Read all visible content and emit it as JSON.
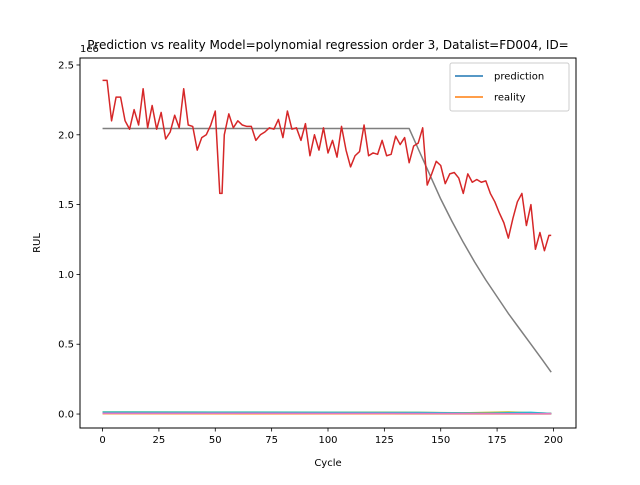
{
  "chart_data": {
    "type": "line",
    "title": "Prediction vs reality Model=polynomial regression order 3, Datalist=FD004, ID=",
    "xlabel": "Cycle",
    "ylabel": "RUL",
    "offset_text": "1e6",
    "xlim": [
      -10,
      210
    ],
    "ylim": [
      -100000,
      2550000
    ],
    "xticks": [
      0,
      25,
      50,
      75,
      100,
      125,
      150,
      175,
      200
    ],
    "yticks": [
      0.0,
      500000,
      1000000,
      1500000,
      2000000,
      2500000
    ],
    "ytick_labels": [
      "0.0",
      "0.5",
      "1.0",
      "1.5",
      "2.0",
      "2.5"
    ],
    "grid": false,
    "legend_position": "top-right",
    "legend": [
      {
        "label": "prediction",
        "color": "#1f77b4"
      },
      {
        "label": "reality",
        "color": "#ff7f0e"
      }
    ],
    "series": [
      {
        "name": "prediction",
        "color": "#1f77b4",
        "x": [
          0,
          50,
          100,
          150,
          199
        ],
        "y": [
          5000,
          5000,
          4000,
          3000,
          2000
        ]
      },
      {
        "name": "reality",
        "color": "#ff7f0e",
        "x": [
          0,
          199
        ],
        "y": [
          3000,
          1000
        ]
      },
      {
        "color": "#2ca02c",
        "x": [
          0,
          50,
          100,
          150,
          199
        ],
        "y": [
          8000,
          7000,
          6000,
          5000,
          4000
        ]
      },
      {
        "color": "#9467bd",
        "x": [
          0,
          50,
          100,
          150,
          199
        ],
        "y": [
          12000,
          11000,
          10000,
          8000,
          6000
        ]
      },
      {
        "color": "#8c564b",
        "x": [
          0,
          50,
          100,
          150,
          199
        ],
        "y": [
          10000,
          9000,
          8000,
          6000,
          3000
        ]
      },
      {
        "color": "#bcbd22",
        "x": [
          0,
          50,
          100,
          140,
          160,
          180,
          199
        ],
        "y": [
          15000,
          14000,
          13000,
          12000,
          8000,
          15000,
          5000
        ]
      },
      {
        "color": "#17becf",
        "x": [
          0,
          50,
          100,
          140,
          170,
          190,
          199
        ],
        "y": [
          14000,
          13000,
          12000,
          11000,
          6000,
          12000,
          4000
        ]
      },
      {
        "color": "#e377c2",
        "x": [
          0,
          50,
          100,
          150,
          199
        ],
        "y": [
          6000,
          6000,
          5000,
          4000,
          3000
        ]
      },
      {
        "color": "#7f7f7f",
        "x": [
          0,
          136,
          140,
          145,
          150,
          155,
          160,
          165,
          170,
          175,
          180,
          185,
          190,
          195,
          199
        ],
        "y": [
          2045000,
          2045000,
          1900000,
          1720000,
          1540000,
          1380000,
          1230000,
          1090000,
          960000,
          840000,
          720000,
          610000,
          500000,
          390000,
          300000
        ]
      },
      {
        "color": "#d62728",
        "x": [
          0,
          2,
          4,
          6,
          8,
          10,
          12,
          14,
          16,
          18,
          20,
          22,
          24,
          26,
          28,
          30,
          32,
          34,
          36,
          38,
          40,
          42,
          44,
          46,
          48,
          50,
          52,
          53,
          54,
          56,
          58,
          60,
          62,
          64,
          66,
          68,
          70,
          72,
          74,
          76,
          78,
          80,
          82,
          84,
          86,
          88,
          90,
          92,
          94,
          96,
          98,
          100,
          102,
          104,
          106,
          108,
          110,
          112,
          114,
          116,
          118,
          120,
          122,
          124,
          126,
          128,
          130,
          132,
          134,
          136,
          138,
          140,
          142,
          144,
          146,
          148,
          150,
          152,
          154,
          156,
          158,
          160,
          162,
          164,
          166,
          168,
          170,
          172,
          174,
          176,
          178,
          180,
          182,
          184,
          186,
          188,
          190,
          192,
          194,
          196,
          198,
          199
        ],
        "y": [
          2390000,
          2390000,
          2100000,
          2270000,
          2270000,
          2100000,
          2040000,
          2180000,
          2070000,
          2330000,
          2050000,
          2210000,
          2040000,
          2160000,
          1970000,
          2020000,
          2140000,
          2050000,
          2330000,
          2070000,
          2060000,
          1890000,
          1980000,
          2000000,
          2070000,
          2170000,
          1580000,
          1580000,
          2000000,
          2150000,
          2050000,
          2100000,
          2070000,
          2060000,
          2060000,
          1960000,
          2000000,
          2020000,
          2050000,
          2040000,
          2110000,
          1980000,
          2170000,
          2040000,
          2050000,
          1960000,
          2080000,
          1850000,
          2000000,
          1890000,
          2050000,
          1870000,
          1960000,
          1840000,
          2060000,
          1890000,
          1770000,
          1850000,
          1880000,
          2070000,
          1850000,
          1870000,
          1860000,
          1960000,
          1850000,
          1860000,
          1990000,
          1930000,
          1980000,
          1800000,
          1920000,
          1940000,
          2050000,
          1640000,
          1720000,
          1810000,
          1780000,
          1650000,
          1720000,
          1730000,
          1690000,
          1580000,
          1720000,
          1660000,
          1680000,
          1660000,
          1670000,
          1580000,
          1520000,
          1440000,
          1370000,
          1260000,
          1400000,
          1520000,
          1580000,
          1350000,
          1500000,
          1180000,
          1300000,
          1170000,
          1280000,
          1280000
        ]
      }
    ]
  }
}
